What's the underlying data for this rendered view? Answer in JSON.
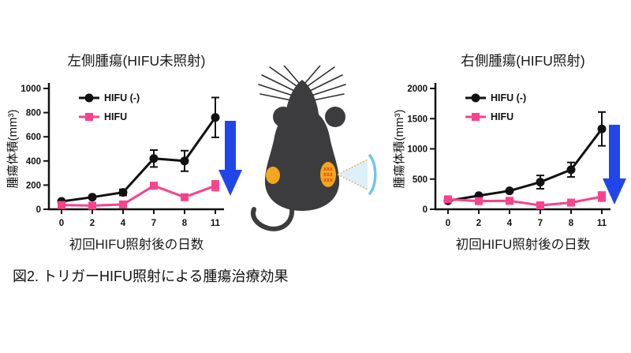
{
  "caption": "図2. トリガーHIFU照射による腫瘍治療効果",
  "colors": {
    "control_series": "#111111",
    "hifu_series": "#F8428C",
    "arrow_blue": "#2045E8",
    "mouse_body": "#3C3C3E",
    "whisker": "#2E2E30",
    "tumor_orange": "#F2A71F",
    "tumor_mark_red": "#E63A1E",
    "beam_fill": "#DCEFFA",
    "beam_dots": "#F2A93B",
    "beam_arc": "#70C4EE",
    "axis_black": "#111111"
  },
  "mouse": {
    "tumor_marks": "xxx"
  },
  "chart_data": [
    {
      "id": "left",
      "type": "line",
      "title": "左側腫瘍(HIFU未照射)",
      "xlabel": "初回HIFU照射後の日数",
      "ylabel": "腫瘍体積(mm³)",
      "categories": [
        "0",
        "2",
        "4",
        "7",
        "8",
        "11"
      ],
      "ylim": [
        0,
        1000
      ],
      "yticks": [
        0,
        200,
        400,
        600,
        800,
        1000
      ],
      "grid": false,
      "legend_position": "top-left-inside",
      "series": [
        {
          "name": "HIFU (-)",
          "marker": "circle",
          "color": "#111111",
          "values": [
            65,
            100,
            140,
            420,
            400,
            760
          ],
          "errors": [
            0,
            0,
            25,
            70,
            85,
            165
          ]
        },
        {
          "name": "HIFU",
          "marker": "square",
          "color": "#F8428C",
          "values": [
            35,
            30,
            40,
            195,
            100,
            195
          ],
          "errors": [
            0,
            0,
            0,
            0,
            0,
            40
          ]
        }
      ]
    },
    {
      "id": "right",
      "type": "line",
      "title": "右側腫瘍(HIFU照射)",
      "xlabel": "初回HIFU照射後の日数",
      "ylabel": "腫瘍体積(mm³)",
      "categories": [
        "0",
        "2",
        "4",
        "7",
        "8",
        "11"
      ],
      "ylim": [
        0,
        2000
      ],
      "yticks": [
        0,
        500,
        1000,
        1500,
        2000
      ],
      "grid": false,
      "legend_position": "top-left-inside",
      "series": [
        {
          "name": "HIFU (-)",
          "marker": "circle",
          "color": "#111111",
          "values": [
            140,
            225,
            305,
            450,
            655,
            1330
          ],
          "errors": [
            0,
            0,
            0,
            110,
            120,
            280
          ]
        },
        {
          "name": "HIFU",
          "marker": "square",
          "color": "#F8428C",
          "values": [
            165,
            135,
            140,
            65,
            110,
            210
          ],
          "errors": [
            40,
            0,
            0,
            0,
            0,
            75
          ]
        }
      ]
    }
  ]
}
